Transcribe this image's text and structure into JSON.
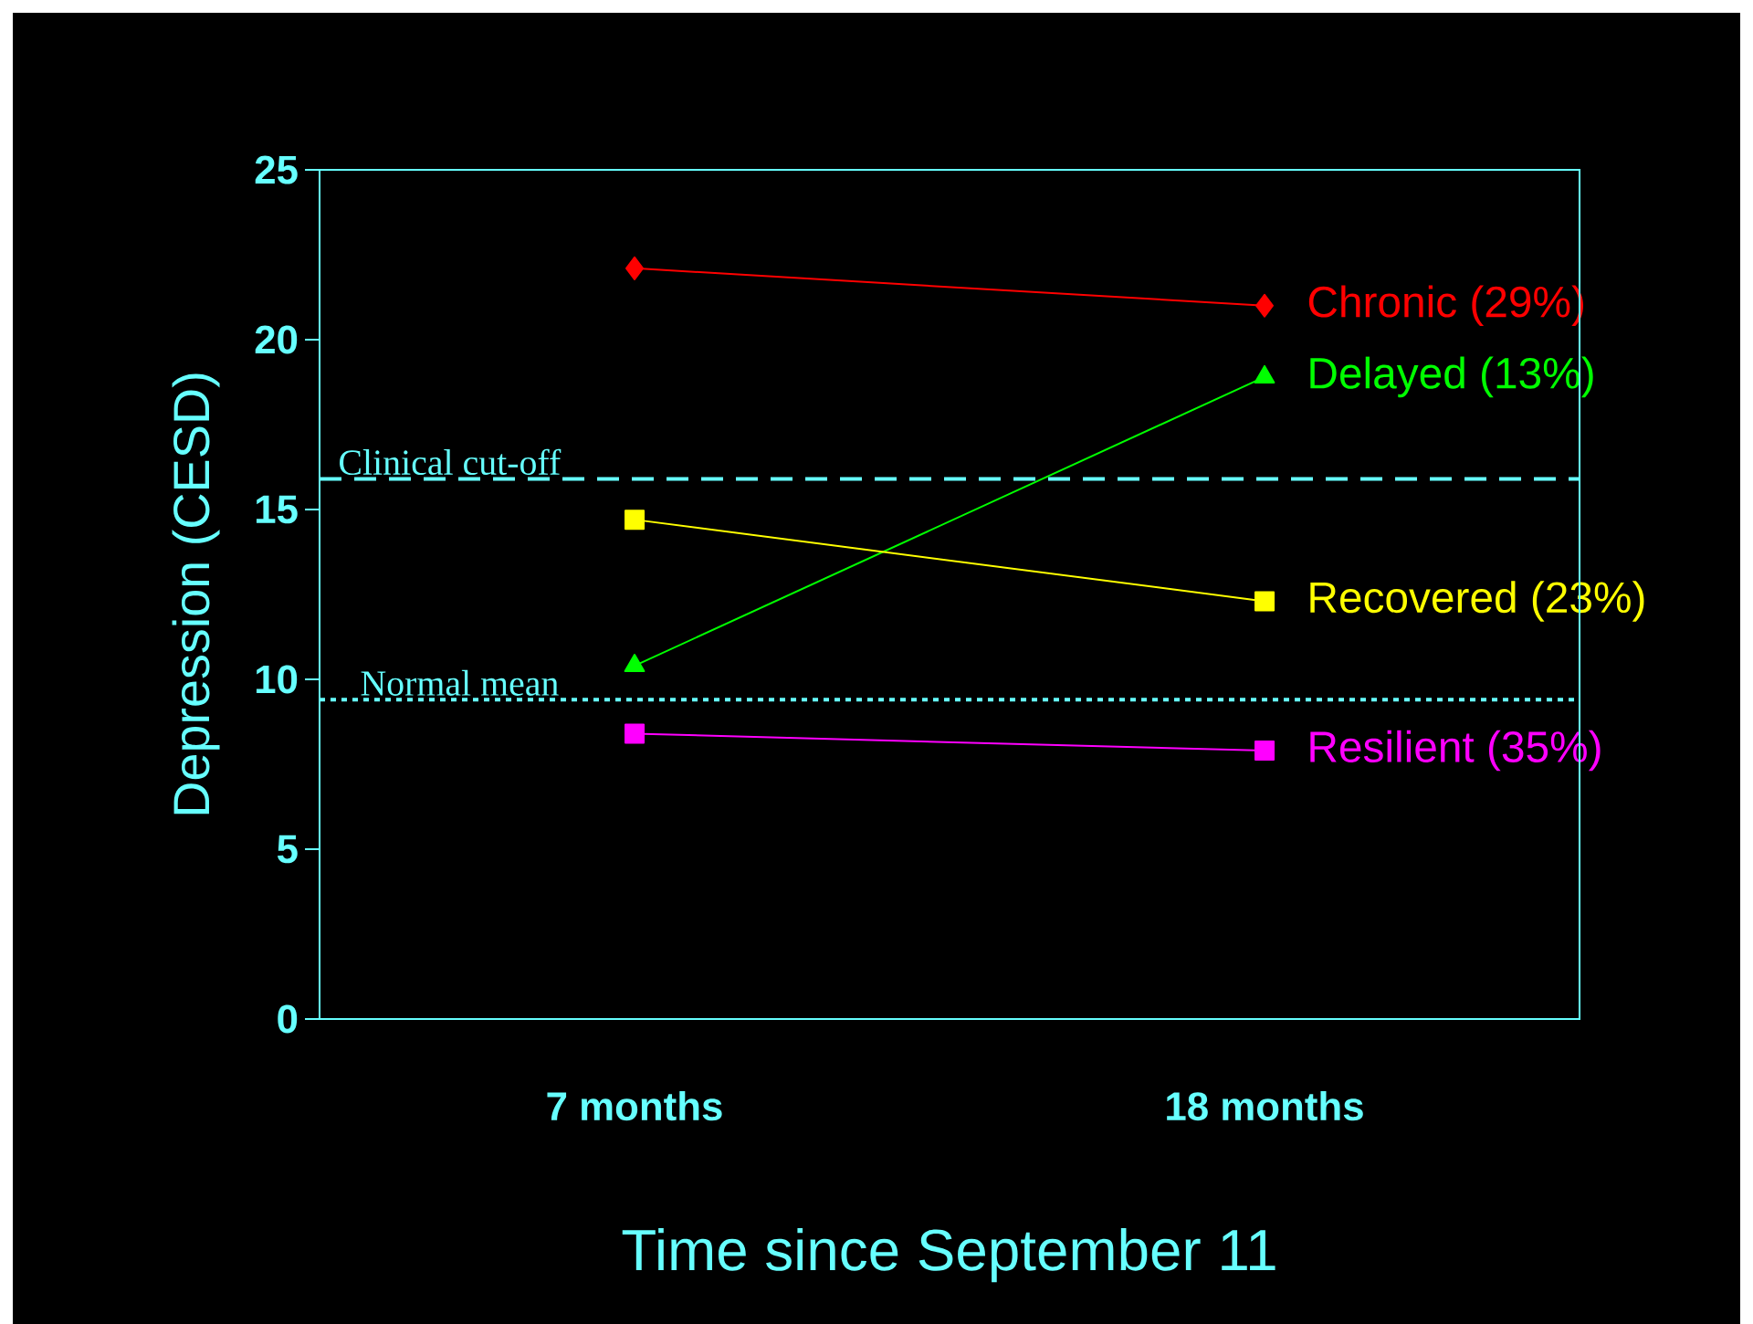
{
  "chart_data": {
    "type": "line",
    "xlabel": "Time since September 11",
    "ylabel": "Depression (CESD)",
    "categories": [
      "7 months",
      "18 months"
    ],
    "ylim": [
      0,
      25
    ],
    "yticks": [
      0,
      5,
      10,
      15,
      20,
      25
    ],
    "series": [
      {
        "name": "Chronic (29%)",
        "color": "#ff0000",
        "marker": "diamond",
        "values": [
          22.1,
          21.0
        ]
      },
      {
        "name": "Delayed (13%)",
        "color": "#00ff00",
        "marker": "triangle",
        "values": [
          10.4,
          18.9
        ]
      },
      {
        "name": "Recovered (23%)",
        "color": "#ffff00",
        "marker": "square",
        "values": [
          14.7,
          12.3
        ]
      },
      {
        "name": "Resilient (35%)",
        "color": "#ff00ff",
        "marker": "square",
        "values": [
          8.4,
          7.9
        ]
      }
    ],
    "ref_lines": [
      {
        "axis": "y",
        "value": 15.9,
        "label": "Clinical cut-off",
        "color": "#66ffff",
        "line_style": "dashed"
      },
      {
        "axis": "y",
        "value": 9.4,
        "label": "Normal mean",
        "color": "#66ffff",
        "line_style": "dotted"
      }
    ],
    "legend": false,
    "grid": false
  }
}
